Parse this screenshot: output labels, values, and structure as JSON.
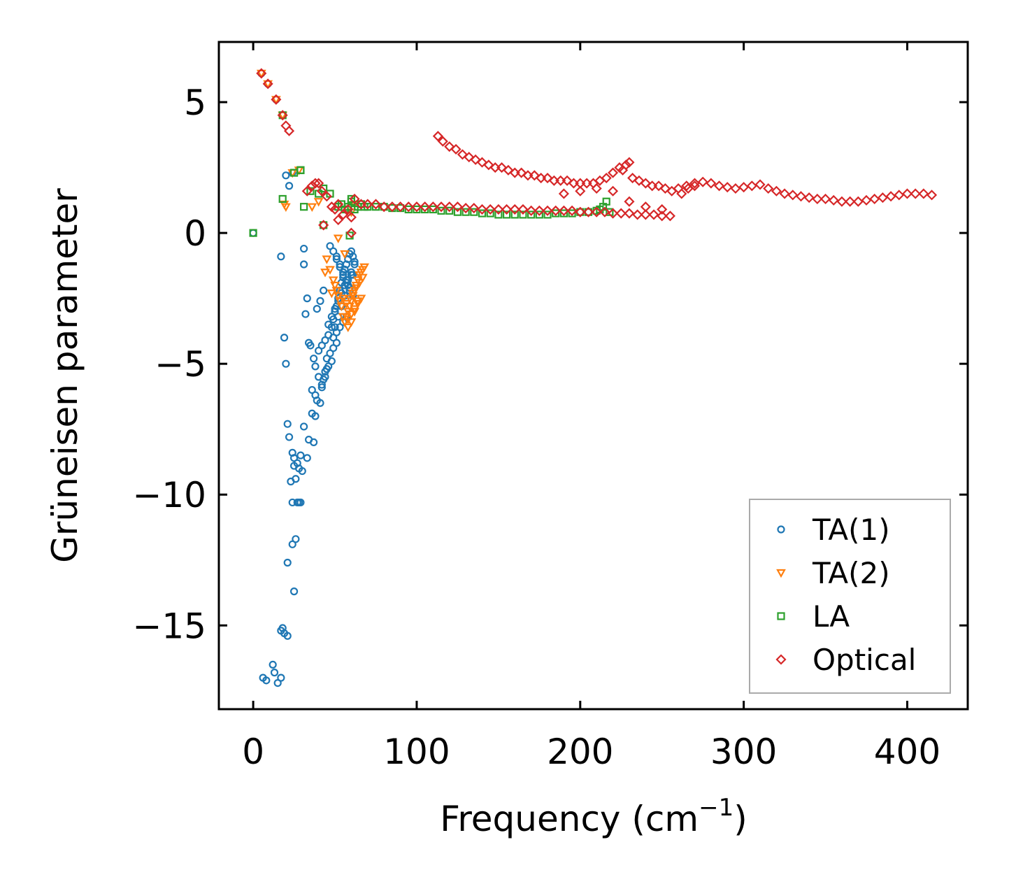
{
  "chart_data": {
    "type": "scatter",
    "title": "",
    "xlabel": "Frequency (cm",
    "xlabel_sup": "−1",
    "xlabel_end": ")",
    "ylabel": "Grüneisen parameter",
    "xlim": [
      -21,
      437
    ],
    "ylim": [
      -18.2,
      7.3
    ],
    "xticks": [
      0,
      100,
      200,
      300,
      400
    ],
    "yticks": [
      5,
      0,
      -5,
      -10,
      -15
    ],
    "ytick_labels": [
      "5",
      "0",
      "−5",
      "−10",
      "−15"
    ],
    "legend_position": "lower-right",
    "grid": false,
    "series": [
      {
        "name": "TA(1)",
        "marker": "circle",
        "color": "#1f77b4",
        "x": [
          0,
          5,
          9,
          14,
          18,
          20,
          22,
          24,
          17,
          31,
          31,
          19,
          20,
          33,
          32,
          34,
          35,
          37,
          38,
          40,
          42,
          36,
          38,
          39,
          41,
          21,
          22,
          24,
          25,
          27,
          28,
          29,
          30,
          31,
          33,
          23,
          26,
          27,
          24,
          25,
          28,
          29,
          26,
          24,
          21,
          25,
          18,
          17,
          19,
          21,
          6,
          8,
          12,
          13,
          15,
          17,
          40,
          42,
          44,
          46,
          48,
          49,
          50,
          51,
          52,
          53,
          54,
          55,
          56,
          57,
          58,
          59,
          60,
          61,
          62,
          46,
          48,
          50,
          52,
          54,
          56,
          58,
          60,
          47,
          49,
          51,
          53,
          55,
          57,
          59,
          61,
          50,
          52,
          54,
          56,
          58,
          60,
          62,
          51,
          53,
          55,
          57,
          59,
          61,
          49,
          51,
          53,
          55,
          57,
          45,
          47,
          49,
          51,
          44,
          46,
          48,
          43,
          45,
          42,
          44,
          36,
          38,
          34,
          37,
          43,
          41,
          39
        ],
        "y": [
          0,
          6.1,
          5.7,
          5.1,
          4.5,
          2.2,
          1.8,
          2.3,
          -0.9,
          -0.6,
          -1.2,
          -4.0,
          -5.0,
          -2.5,
          -3.1,
          -4.2,
          -4.3,
          -4.8,
          -5.1,
          -5.5,
          -5.8,
          -6.0,
          -6.2,
          -6.4,
          -6.5,
          -7.3,
          -7.8,
          -8.4,
          -8.6,
          -8.8,
          -9.0,
          -8.5,
          -9.1,
          -7.4,
          -8.6,
          -9.5,
          -9.4,
          -10.3,
          -10.3,
          -8.9,
          -10.3,
          -10.3,
          -11.7,
          -11.9,
          -12.6,
          -13.7,
          -15.1,
          -15.2,
          -15.3,
          -15.4,
          -17.0,
          -17.1,
          -16.5,
          -16.8,
          -17.2,
          -17.0,
          -4.5,
          -4.3,
          -4.1,
          -3.9,
          -3.6,
          -3.3,
          -3.0,
          -2.8,
          -2.5,
          -2.2,
          -1.9,
          -1.7,
          -1.4,
          -1.2,
          -1.0,
          -0.8,
          -0.7,
          -0.9,
          -1.1,
          -3.5,
          -3.2,
          -2.9,
          -2.6,
          -2.3,
          -2.0,
          -1.8,
          -1.5,
          -0.5,
          -0.7,
          -1.0,
          -1.3,
          -1.6,
          -1.9,
          -2.2,
          -1.6,
          -3.6,
          -3.2,
          -2.8,
          -2.4,
          -2.0,
          -1.6,
          -1.2,
          -0.9,
          -1.2,
          -1.5,
          -1.8,
          -2.1,
          -2.4,
          -4.0,
          -3.8,
          -3.6,
          -3.4,
          -3.2,
          -4.8,
          -4.6,
          -4.4,
          -4.2,
          -5.3,
          -5.1,
          -4.9,
          -5.6,
          -5.2,
          -5.9,
          -5.5,
          -6.9,
          -7.0,
          -7.9,
          -8.0,
          -2.2,
          -2.6,
          -2.9
        ]
      },
      {
        "name": "TA(2)",
        "marker": "triangle-down",
        "color": "#ff7f0e",
        "x": [
          5,
          9,
          14,
          18,
          20,
          24,
          28,
          19,
          36,
          40,
          44,
          48,
          52,
          56,
          60,
          62,
          55,
          56,
          57,
          58,
          59,
          60,
          61,
          62,
          63,
          64,
          65,
          66,
          67,
          68,
          55,
          57,
          59,
          61,
          63,
          65,
          67,
          56,
          58,
          60,
          62,
          64,
          66,
          50,
          52,
          54,
          58,
          60,
          62,
          64,
          45,
          47,
          49,
          51,
          53
        ],
        "y": [
          6.1,
          5.7,
          5.1,
          4.5,
          1.0,
          2.3,
          2.4,
          1.1,
          1.0,
          1.2,
          -1.5,
          -2.3,
          -0.2,
          -0.8,
          0.8,
          1.1,
          -3.2,
          -3.4,
          -3.2,
          -3.0,
          -2.8,
          -2.6,
          -2.4,
          -2.2,
          -2.0,
          -1.8,
          -1.6,
          -1.5,
          -1.4,
          -1.3,
          -2.5,
          -2.7,
          -2.5,
          -2.3,
          -2.1,
          -1.9,
          -1.7,
          -3.4,
          -3.3,
          -3.1,
          -2.9,
          -2.7,
          -2.5,
          -2.0,
          -2.4,
          -2.8,
          -3.6,
          -3.4,
          -3.0,
          -2.6,
          -1.0,
          -1.4,
          -1.8,
          -2.2,
          -2.6
        ]
      },
      {
        "name": "LA",
        "marker": "square",
        "color": "#2ca02c",
        "x": [
          0,
          18,
          25,
          29,
          31,
          35,
          40,
          43,
          47,
          18,
          29,
          43,
          52,
          54,
          56,
          58,
          60,
          62,
          64,
          66,
          68,
          70,
          75,
          80,
          85,
          90,
          95,
          100,
          105,
          110,
          115,
          120,
          125,
          130,
          135,
          140,
          145,
          150,
          155,
          160,
          165,
          170,
          175,
          180,
          185,
          190,
          195,
          200,
          205,
          210,
          212,
          214,
          216,
          218,
          59,
          60
        ],
        "y": [
          0,
          4.5,
          2.3,
          2.4,
          1.0,
          1.6,
          1.5,
          1.7,
          1.5,
          1.3,
          2.4,
          0.3,
          1.0,
          1.1,
          0.9,
          1.0,
          1.2,
          0.9,
          1.0,
          1.1,
          1.0,
          1.0,
          1.0,
          1.0,
          0.95,
          0.95,
          0.9,
          0.9,
          0.9,
          0.9,
          0.85,
          0.85,
          0.8,
          0.8,
          0.8,
          0.75,
          0.75,
          0.7,
          0.7,
          0.7,
          0.7,
          0.7,
          0.7,
          0.7,
          0.75,
          0.75,
          0.75,
          0.8,
          0.8,
          0.85,
          0.9,
          1.0,
          1.2,
          0.8,
          -0.1,
          1.3
        ]
      },
      {
        "name": "Optical",
        "marker": "diamond",
        "color": "#d62728",
        "x": [
          5,
          9,
          14,
          18,
          20,
          22,
          33,
          36,
          38,
          40,
          42,
          45,
          48,
          50,
          52,
          55,
          58,
          60,
          62,
          60,
          43,
          52,
          66,
          70,
          75,
          80,
          85,
          90,
          95,
          100,
          105,
          110,
          115,
          120,
          125,
          130,
          135,
          140,
          145,
          150,
          155,
          160,
          165,
          170,
          175,
          180,
          185,
          190,
          195,
          200,
          205,
          210,
          215,
          220,
          225,
          230,
          235,
          240,
          245,
          250,
          255,
          113,
          116,
          120,
          124,
          128,
          132,
          136,
          140,
          144,
          148,
          152,
          156,
          160,
          164,
          168,
          172,
          176,
          180,
          184,
          188,
          192,
          196,
          200,
          204,
          208,
          212,
          216,
          220,
          224,
          228,
          230,
          226,
          232,
          236,
          240,
          244,
          248,
          252,
          256,
          260,
          265,
          270,
          275,
          280,
          285,
          290,
          295,
          300,
          305,
          310,
          315,
          320,
          325,
          330,
          335,
          340,
          345,
          350,
          355,
          360,
          365,
          370,
          375,
          380,
          385,
          390,
          395,
          400,
          405,
          410,
          415,
          190,
          200,
          210,
          220,
          230,
          240,
          250,
          262,
          266,
          270
        ],
        "y": [
          6.1,
          5.7,
          5.1,
          4.5,
          4.1,
          3.9,
          1.6,
          1.8,
          1.9,
          1.9,
          1.6,
          1.4,
          1.0,
          0.9,
          0.5,
          0.7,
          0.9,
          0.6,
          1.3,
          0.0,
          0.3,
          1.1,
          1.1,
          1.1,
          1.1,
          1.0,
          1.0,
          1.0,
          1.0,
          1.0,
          1.0,
          1.0,
          1.0,
          1.0,
          1.0,
          0.95,
          0.95,
          0.9,
          0.9,
          0.9,
          0.9,
          0.9,
          0.9,
          0.85,
          0.85,
          0.85,
          0.85,
          0.85,
          0.85,
          0.8,
          0.8,
          0.8,
          0.8,
          0.75,
          0.75,
          0.75,
          0.7,
          0.7,
          0.7,
          0.65,
          0.65,
          3.7,
          3.5,
          3.3,
          3.2,
          3.0,
          2.9,
          2.8,
          2.7,
          2.6,
          2.5,
          2.5,
          2.4,
          2.3,
          2.3,
          2.2,
          2.2,
          2.1,
          2.1,
          2.0,
          2.0,
          2.0,
          1.9,
          1.9,
          1.9,
          1.9,
          2.0,
          2.1,
          2.3,
          2.5,
          2.6,
          2.7,
          2.4,
          2.1,
          2.0,
          1.9,
          1.8,
          1.8,
          1.7,
          1.6,
          1.7,
          1.8,
          1.9,
          1.95,
          1.9,
          1.8,
          1.75,
          1.7,
          1.75,
          1.8,
          1.85,
          1.7,
          1.6,
          1.5,
          1.45,
          1.4,
          1.35,
          1.3,
          1.3,
          1.25,
          1.2,
          1.2,
          1.2,
          1.25,
          1.3,
          1.35,
          1.4,
          1.45,
          1.5,
          1.5,
          1.5,
          1.45,
          1.5,
          1.6,
          1.7,
          1.6,
          1.2,
          1.0,
          0.9,
          1.5,
          1.7,
          1.8
        ]
      }
    ]
  }
}
